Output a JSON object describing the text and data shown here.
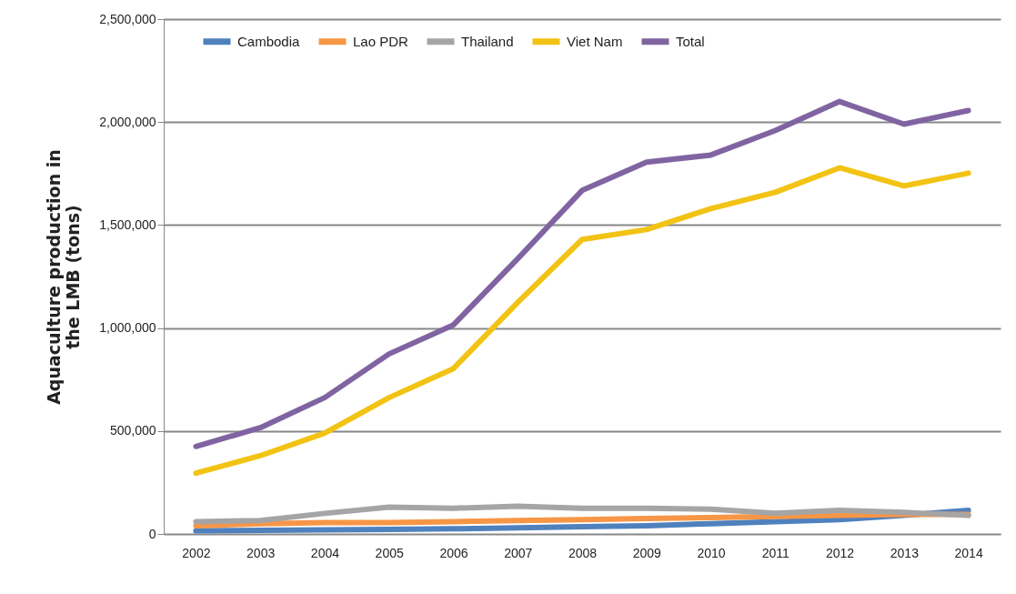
{
  "chart_data": {
    "type": "line",
    "ylabel": "Aquaculture production in\nthe LMB (tons)",
    "categories": [
      "2002",
      "2003",
      "2004",
      "2005",
      "2006",
      "2007",
      "2008",
      "2009",
      "2010",
      "2011",
      "2012",
      "2013",
      "2014"
    ],
    "series": [
      {
        "name": "Cambodia",
        "color": "#4f81bd",
        "values": [
          15000,
          18000,
          20000,
          22000,
          25000,
          30000,
          35000,
          40000,
          50000,
          60000,
          70000,
          90000,
          115000
        ]
      },
      {
        "name": "Lao PDR",
        "color": "#f79646",
        "values": [
          40000,
          50000,
          55000,
          55000,
          60000,
          65000,
          70000,
          75000,
          80000,
          85000,
          90000,
          95000,
          95000
        ]
      },
      {
        "name": "Thailand",
        "color": "#a5a5a5",
        "values": [
          60000,
          65000,
          100000,
          130000,
          125000,
          135000,
          125000,
          125000,
          120000,
          100000,
          115000,
          105000,
          90000
        ]
      },
      {
        "name": "Viet Nam",
        "color": "#f2c314",
        "values": [
          295000,
          380000,
          490000,
          662000,
          803000,
          1125000,
          1430000,
          1478000,
          1580000,
          1659000,
          1778000,
          1690000,
          1752000
        ]
      },
      {
        "name": "Total",
        "color": "#8064a2",
        "values": [
          425000,
          516000,
          662000,
          874000,
          1015000,
          1337000,
          1668000,
          1805000,
          1840000,
          1959000,
          2100000,
          1990000,
          2056000
        ]
      }
    ],
    "ylim": [
      0,
      2500000
    ],
    "yticks": [
      0,
      {
        "value": 500000,
        "label": "500,000"
      },
      {
        "value": 1000000,
        "label": "1,000,000"
      },
      {
        "value": 1500000,
        "label": "1,500,000"
      },
      {
        "value": 2000000,
        "label": "2,000,000"
      },
      {
        "value": 2500000,
        "label": "2,500,000"
      }
    ],
    "grid": "y",
    "legend": "top"
  }
}
